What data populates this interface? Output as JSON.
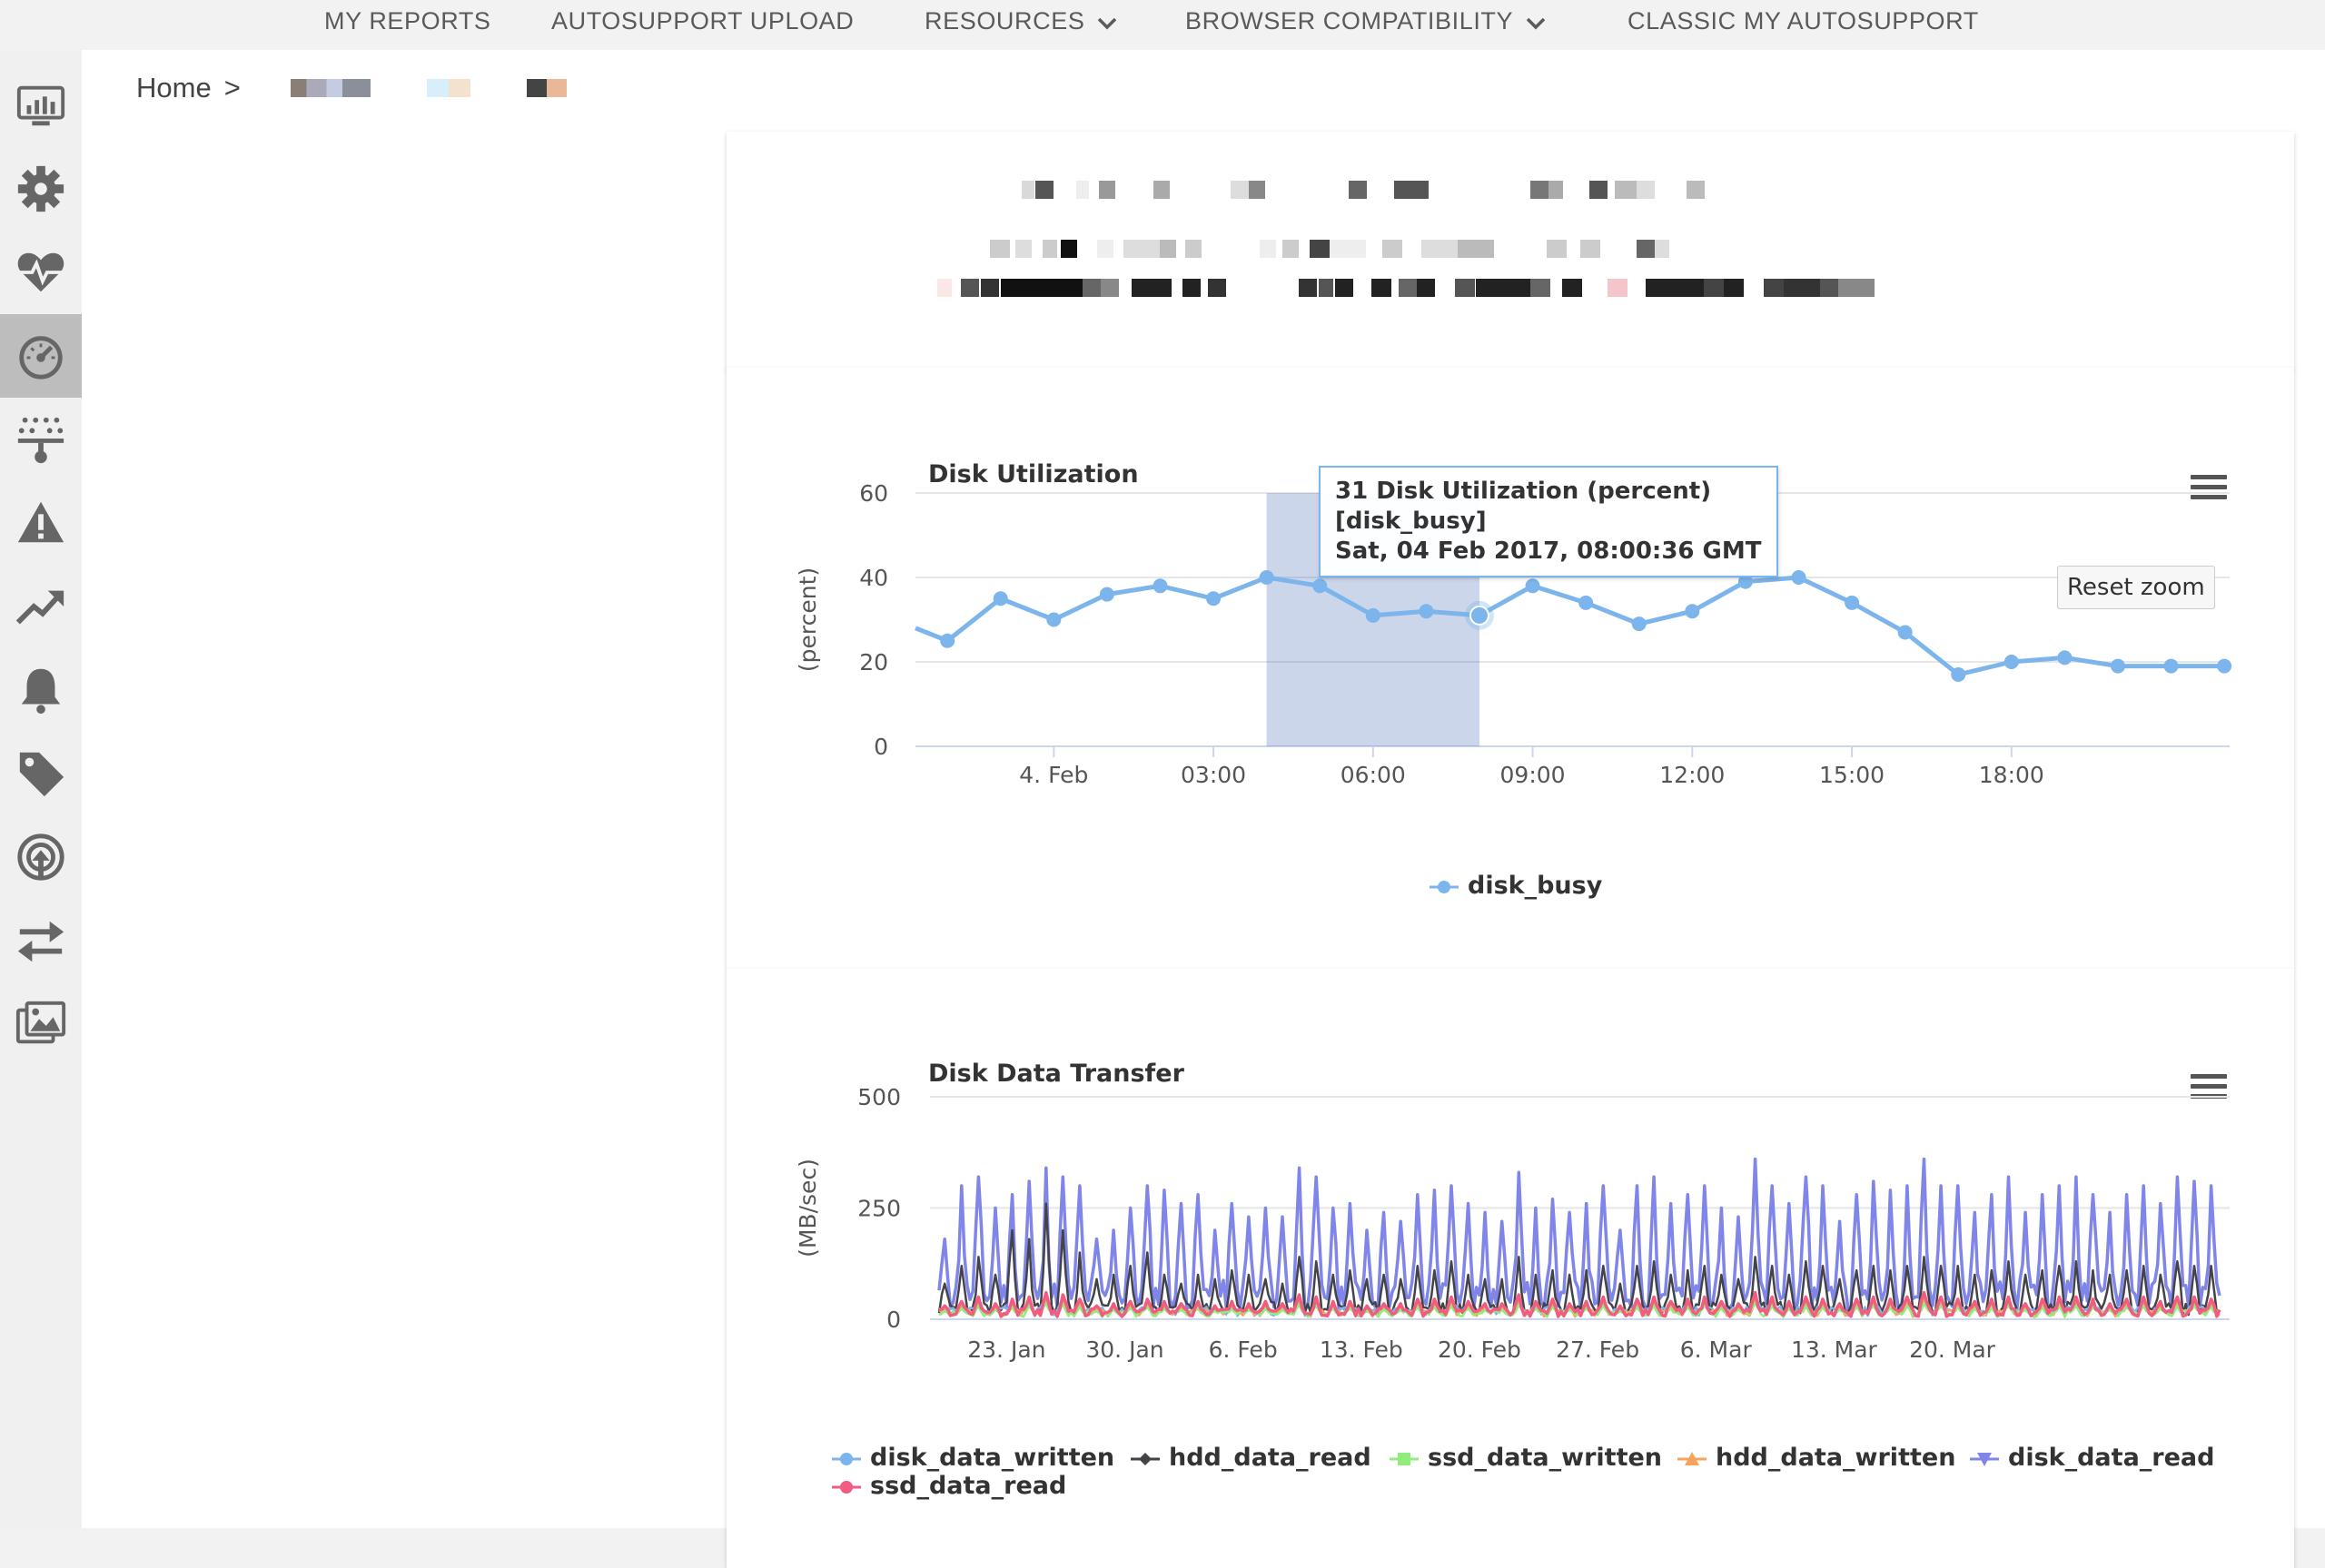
{
  "nav": {
    "items": [
      {
        "label": "MY REPORTS",
        "dropdown": false
      },
      {
        "label": "AUTOSUPPORT UPLOAD",
        "dropdown": false
      },
      {
        "label": "RESOURCES",
        "dropdown": true
      },
      {
        "label": "BROWSER COMPATIBILITY",
        "dropdown": true
      },
      {
        "label": "CLASSIC MY AUTOSUPPORT",
        "dropdown": false
      }
    ]
  },
  "sidebar": {
    "icons": [
      "dashboard-icon",
      "gear-icon",
      "health-icon",
      "performance-gauge-icon",
      "network-icon",
      "warning-icon",
      "trending-icon",
      "bell-icon",
      "tag-icon",
      "upload-icon",
      "transfer-icon",
      "images-icon"
    ],
    "active_index": 3
  },
  "breadcrumb": {
    "home": "Home",
    "separator": ">"
  },
  "charts": {
    "utilization": {
      "title": "Disk Utilization",
      "reset_label": "Reset zoom",
      "tooltip": {
        "line1": "31 Disk Utilization (percent)",
        "line2": "[disk_busy]",
        "line3": "Sat, 04 Feb 2017, 08:00:36 GMT"
      }
    },
    "transfer": {
      "title": "Disk Data Transfer"
    }
  },
  "colors": {
    "disk_busy": "#7cb5ec",
    "disk_data_written": "#7cb5ec",
    "hdd_data_read": "#434348",
    "ssd_data_written": "#90ed7d",
    "hdd_data_written": "#f7a35c",
    "disk_data_read": "#8085e9",
    "ssd_data_read": "#f15c80"
  },
  "chart_data": [
    {
      "type": "line",
      "title": "Disk Utilization",
      "ylabel": "(percent)",
      "ylim": [
        0,
        60
      ],
      "yticks": [
        "0",
        "20",
        "40",
        "60"
      ],
      "xticks": [
        "4. Feb",
        "03:00",
        "06:00",
        "09:00",
        "12:00",
        "15:00",
        "18:00"
      ],
      "x_unit": "hour offset from 4. Feb 00:00",
      "series": [
        {
          "name": "disk_busy",
          "x": [
            -3,
            -2,
            -1,
            0,
            1,
            2,
            3,
            4,
            5,
            6,
            7,
            8,
            9,
            10,
            11,
            12,
            13,
            14,
            15,
            16,
            17,
            18,
            19,
            20,
            21,
            22
          ],
          "values": [
            28,
            25,
            35,
            30,
            36,
            38,
            35,
            40,
            38,
            31,
            32,
            31,
            38,
            34,
            29,
            32,
            39,
            40,
            34,
            27,
            17,
            20,
            21,
            19,
            19,
            19
          ]
        }
      ],
      "highlight_band": {
        "from": 4,
        "to": 8
      },
      "selected_point": {
        "x": 8,
        "y": 31
      },
      "legend": "bottom-center"
    },
    {
      "type": "line",
      "title": "Disk Data Transfer",
      "ylabel": "(MB/sec)",
      "ylim": [
        0,
        500
      ],
      "yticks": [
        "0",
        "250",
        "500"
      ],
      "xticks": [
        "23. Jan",
        "30. Jan",
        "6. Feb",
        "13. Feb",
        "20. Feb",
        "27. Feb",
        "6. Mar",
        "13. Mar",
        "20. Mar"
      ],
      "series_names": [
        "disk_data_written",
        "hdd_data_read",
        "ssd_data_written",
        "hdd_data_written",
        "disk_data_read",
        "ssd_data_read"
      ],
      "daily_peaks": {
        "disk_data_read": [
          180,
          300,
          320,
          250,
          280,
          310,
          340,
          320,
          300,
          180,
          200,
          250,
          300,
          290,
          260,
          280,
          200,
          260,
          230,
          250,
          230,
          340,
          320,
          250,
          260,
          200,
          240,
          220,
          280,
          290,
          300,
          260,
          240,
          220,
          330,
          250,
          270,
          240,
          260,
          300,
          200,
          300,
          320,
          260,
          280,
          300,
          250,
          230,
          360,
          300,
          260,
          320,
          300,
          220,
          280,
          310,
          290,
          300,
          360,
          300,
          300,
          240,
          280,
          320,
          240,
          280,
          300,
          320,
          280,
          240,
          280,
          300,
          260,
          320,
          310,
          300,
          80
        ],
        "hdd_data_read": [
          80,
          120,
          140,
          100,
          200,
          180,
          260,
          200,
          150,
          90,
          100,
          120,
          150,
          100,
          80,
          100,
          90,
          110,
          100,
          90,
          80,
          140,
          130,
          100,
          110,
          90,
          100,
          90,
          120,
          110,
          130,
          100,
          90,
          90,
          140,
          100,
          110,
          100,
          110,
          120,
          80,
          120,
          130,
          100,
          110,
          120,
          100,
          90,
          140,
          120,
          100,
          130,
          120,
          90,
          110,
          120,
          110,
          120,
          140,
          120,
          120,
          100,
          110,
          130,
          100,
          110,
          120,
          130,
          110,
          100,
          110,
          120,
          100,
          130,
          120,
          120,
          50
        ],
        "ssd_data_read": [
          30,
          40,
          50,
          35,
          45,
          50,
          60,
          55,
          45,
          30,
          35,
          40,
          45,
          40,
          35,
          40,
          30,
          40,
          35,
          40,
          35,
          55,
          50,
          40,
          40,
          30,
          35,
          35,
          45,
          45,
          50,
          40,
          35,
          35,
          55,
          40,
          45,
          35,
          40,
          50,
          30,
          45,
          50,
          40,
          45,
          50,
          40,
          35,
          60,
          50,
          40,
          50,
          45,
          35,
          45,
          50,
          45,
          50,
          60,
          50,
          45,
          40,
          45,
          50,
          35,
          45,
          50,
          50,
          45,
          35,
          45,
          50,
          40,
          50,
          50,
          45,
          25
        ]
      },
      "legend": "bottom"
    }
  ],
  "legend_labels": {
    "disk_busy": "disk_busy",
    "disk_data_written": "disk_data_written",
    "hdd_data_read": "hdd_data_read",
    "ssd_data_written": "ssd_data_written",
    "hdd_data_written": "hdd_data_written",
    "disk_data_read": "disk_data_read",
    "ssd_data_read": "ssd_data_read"
  }
}
